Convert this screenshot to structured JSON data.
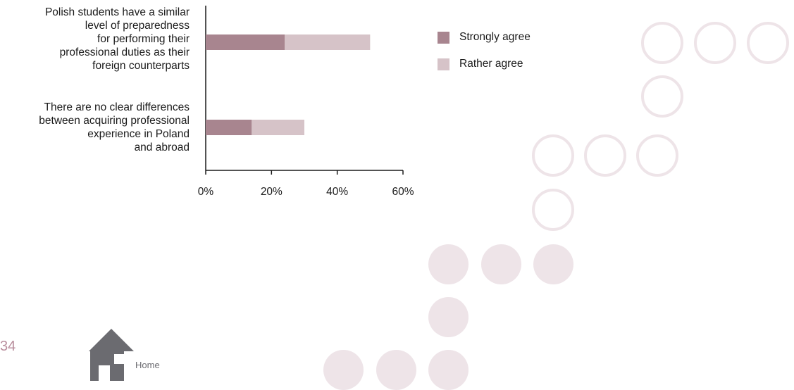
{
  "chart_data": {
    "type": "bar",
    "orientation": "horizontal",
    "stacked": true,
    "categories": [
      "Polish students have a similar level of preparedness for performing their professional duties as their foreign counterparts",
      "There are no clear differences between acquiring professional experience in Poland and abroad"
    ],
    "category_lines": [
      [
        "Polish students have a similar",
        "level of preparedness",
        "for performing their",
        "professional duties as their",
        "foreign counterparts"
      ],
      [
        "There are no clear differences",
        "between acquiring professional",
        "experience in Poland",
        "and abroad"
      ]
    ],
    "series": [
      {
        "name": "Strongly agree",
        "color": "#a8858f",
        "values": [
          24,
          14
        ]
      },
      {
        "name": "Rather agree",
        "color": "#d6c3c8",
        "values": [
          26,
          16
        ]
      }
    ],
    "xlim": [
      0,
      60
    ],
    "x_ticks": [
      "0%",
      "20%",
      "40%",
      "60%"
    ],
    "legend_position": "right",
    "grid": false
  },
  "page": {
    "number": "34",
    "home_label": "Home"
  },
  "decoration": {
    "circle_color": "#eee4e8",
    "icon": "home-icon"
  }
}
